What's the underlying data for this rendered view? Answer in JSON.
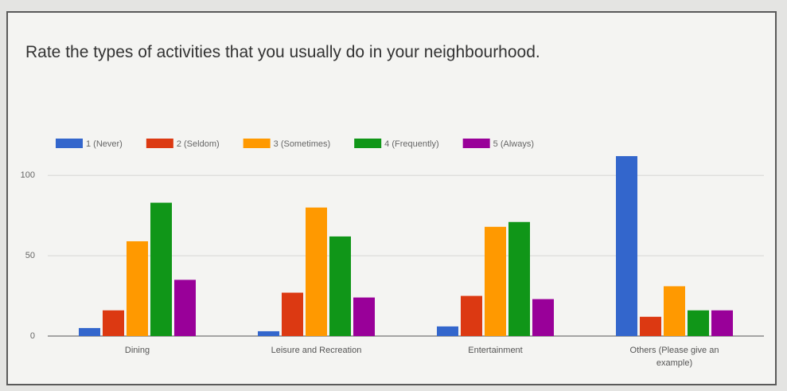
{
  "chart_data": {
    "type": "bar",
    "title": "Rate the types of activities that you usually do in your neighbourhood.",
    "categories": [
      "Dining",
      "Leisure and Recreation",
      "Entertainment",
      "Others (Please give an example)"
    ],
    "series": [
      {
        "name": "1 (Never)",
        "color": "#3366cc",
        "values": [
          5,
          3,
          6,
          112
        ]
      },
      {
        "name": "2 (Seldom)",
        "color": "#dc3912",
        "values": [
          16,
          27,
          25,
          12
        ]
      },
      {
        "name": "3 (Sometimes)",
        "color": "#ff9900",
        "values": [
          59,
          80,
          68,
          31
        ]
      },
      {
        "name": "4 (Frequently)",
        "color": "#109618",
        "values": [
          83,
          62,
          71,
          16
        ]
      },
      {
        "name": "5 (Always)",
        "color": "#990099",
        "values": [
          35,
          24,
          23,
          16
        ]
      }
    ],
    "ylim": [
      0,
      115
    ],
    "yticks": [
      0,
      50,
      100
    ],
    "grid": true,
    "legend": "top"
  }
}
